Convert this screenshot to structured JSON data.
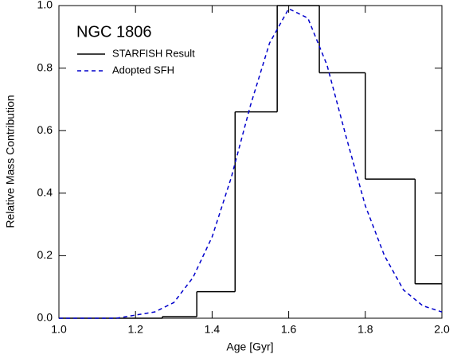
{
  "chart_data": {
    "type": "histogram",
    "title": "NGC 1806",
    "x_label": "Age [Gyr]",
    "y_label": "Relative Mass Contribution",
    "xlim": [
      1.0,
      2.0
    ],
    "ylim": [
      0.0,
      1.0
    ],
    "xticks": [
      {
        "value": 1.0,
        "label": "1.0"
      },
      1.2,
      1.4,
      1.6,
      1.8,
      {
        "value": 2.0,
        "label": "2.0"
      }
    ],
    "yticks": [
      {
        "value": 0.0,
        "label": "0.0"
      },
      0.2,
      0.4,
      0.6,
      0.8,
      {
        "value": 1.0,
        "label": "1.0"
      }
    ],
    "series": [
      {
        "name": "STARFISH Result",
        "type": "histogram",
        "color": "#000000",
        "bins": [
          1.0,
          1.27,
          1.36,
          1.46,
          1.57,
          1.68,
          1.8,
          1.93,
          2.0
        ],
        "values": [
          0,
          0.005,
          0.085,
          0.66,
          1.0,
          0.785,
          0.445,
          0.11
        ]
      },
      {
        "name": "Adopted SFH",
        "type": "line",
        "color": "#0000cc",
        "dashed": true,
        "x": [
          1.0,
          1.05,
          1.1,
          1.15,
          1.2,
          1.25,
          1.3,
          1.35,
          1.4,
          1.45,
          1.5,
          1.55,
          1.6,
          1.65,
          1.7,
          1.75,
          1.8,
          1.85,
          1.9,
          1.95,
          2.0
        ],
        "values": [
          0,
          0,
          0,
          0,
          0.01,
          0.02,
          0.05,
          0.13,
          0.26,
          0.45,
          0.68,
          0.88,
          0.99,
          0.96,
          0.81,
          0.58,
          0.36,
          0.2,
          0.09,
          0.04,
          0.02
        ]
      }
    ]
  }
}
